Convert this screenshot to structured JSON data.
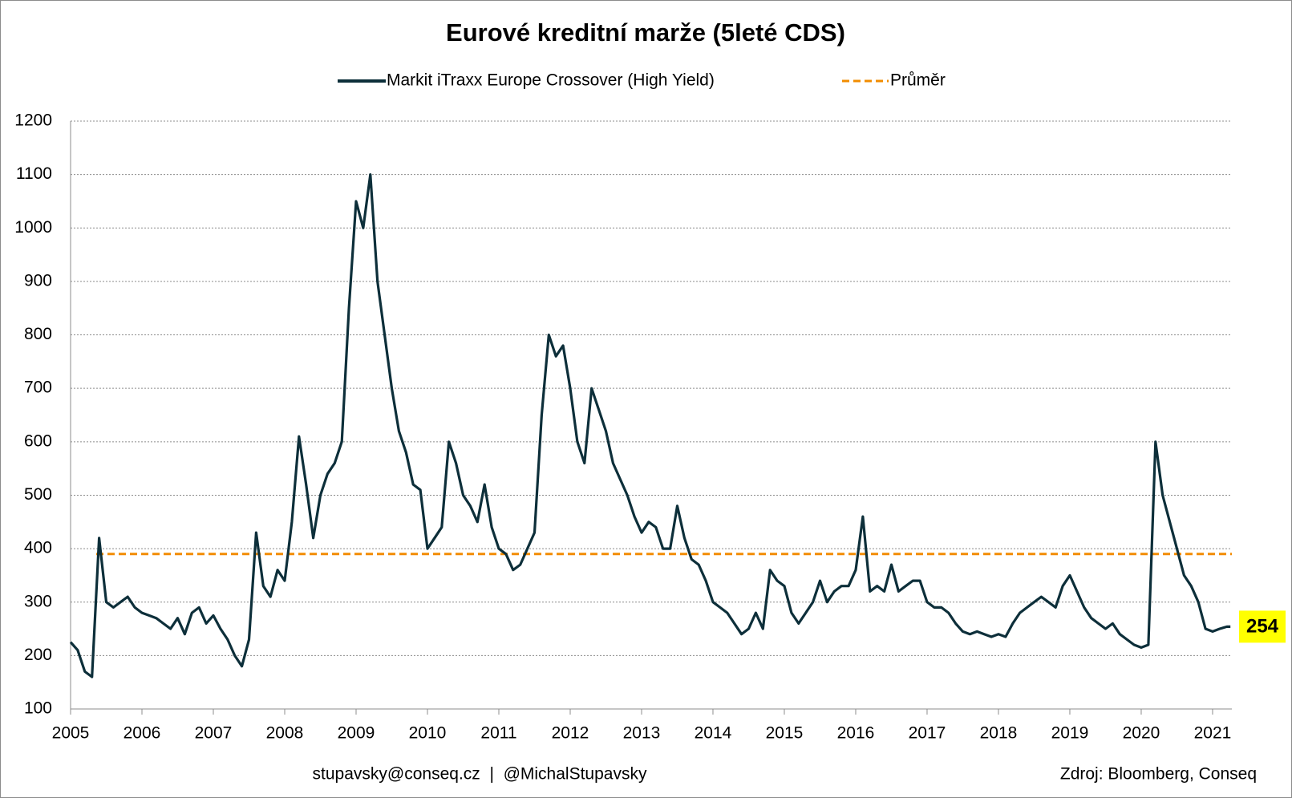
{
  "chart_data": {
    "type": "line",
    "title": "Eurové kreditní marže (5leté CDS)",
    "x": [
      2005.0,
      2005.1,
      2005.2,
      2005.3,
      2005.4,
      2005.5,
      2005.6,
      2005.7,
      2005.8,
      2005.9,
      2006.0,
      2006.1,
      2006.2,
      2006.3,
      2006.4,
      2006.5,
      2006.6,
      2006.7,
      2006.8,
      2006.9,
      2007.0,
      2007.1,
      2007.2,
      2007.3,
      2007.4,
      2007.5,
      2007.6,
      2007.7,
      2007.8,
      2007.9,
      2008.0,
      2008.1,
      2008.2,
      2008.3,
      2008.4,
      2008.5,
      2008.6,
      2008.7,
      2008.8,
      2008.9,
      2009.0,
      2009.1,
      2009.2,
      2009.3,
      2009.4,
      2009.5,
      2009.6,
      2009.7,
      2009.8,
      2009.9,
      2010.0,
      2010.1,
      2010.2,
      2010.3,
      2010.4,
      2010.5,
      2010.6,
      2010.7,
      2010.8,
      2010.9,
      2011.0,
      2011.1,
      2011.2,
      2011.3,
      2011.4,
      2011.5,
      2011.6,
      2011.7,
      2011.8,
      2011.9,
      2012.0,
      2012.1,
      2012.2,
      2012.3,
      2012.4,
      2012.5,
      2012.6,
      2012.7,
      2012.8,
      2012.9,
      2013.0,
      2013.1,
      2013.2,
      2013.3,
      2013.4,
      2013.5,
      2013.6,
      2013.7,
      2013.8,
      2013.9,
      2014.0,
      2014.1,
      2014.2,
      2014.3,
      2014.4,
      2014.5,
      2014.6,
      2014.7,
      2014.8,
      2014.9,
      2015.0,
      2015.1,
      2015.2,
      2015.3,
      2015.4,
      2015.5,
      2015.6,
      2015.7,
      2015.8,
      2015.9,
      2016.0,
      2016.1,
      2016.2,
      2016.3,
      2016.4,
      2016.5,
      2016.6,
      2016.7,
      2016.8,
      2016.9,
      2017.0,
      2017.1,
      2017.2,
      2017.3,
      2017.4,
      2017.5,
      2017.6,
      2017.7,
      2017.8,
      2017.9,
      2018.0,
      2018.1,
      2018.2,
      2018.3,
      2018.4,
      2018.5,
      2018.6,
      2018.7,
      2018.8,
      2018.9,
      2019.0,
      2019.1,
      2019.2,
      2019.3,
      2019.4,
      2019.5,
      2019.6,
      2019.7,
      2019.8,
      2019.9,
      2020.0,
      2020.1,
      2020.2,
      2020.3,
      2020.4,
      2020.5,
      2020.6,
      2020.7,
      2020.8,
      2020.9,
      2021.0,
      2021.1,
      2021.2,
      2021.25
    ],
    "series": [
      {
        "name": "Markit iTraxx Europe Crossover (High Yield)",
        "color": "#0d2f3a",
        "values": [
          225,
          210,
          170,
          160,
          420,
          300,
          290,
          300,
          310,
          290,
          280,
          275,
          270,
          260,
          250,
          270,
          240,
          280,
          290,
          260,
          275,
          250,
          230,
          200,
          180,
          230,
          430,
          330,
          310,
          360,
          340,
          450,
          610,
          520,
          420,
          500,
          540,
          560,
          600,
          850,
          1050,
          1000,
          1100,
          900,
          800,
          700,
          620,
          580,
          520,
          510,
          400,
          420,
          440,
          600,
          560,
          500,
          480,
          450,
          520,
          440,
          400,
          390,
          360,
          370,
          400,
          430,
          650,
          800,
          760,
          780,
          700,
          600,
          560,
          700,
          660,
          620,
          560,
          530,
          500,
          460,
          430,
          450,
          440,
          400,
          400,
          480,
          420,
          380,
          370,
          340,
          300,
          290,
          280,
          260,
          240,
          250,
          280,
          250,
          360,
          340,
          330,
          280,
          260,
          280,
          300,
          340,
          300,
          320,
          330,
          330,
          360,
          460,
          320,
          330,
          320,
          370,
          320,
          330,
          340,
          340,
          300,
          290,
          290,
          280,
          260,
          245,
          240,
          245,
          240,
          235,
          240,
          235,
          260,
          280,
          290,
          300,
          310,
          300,
          290,
          330,
          350,
          320,
          290,
          270,
          260,
          250,
          260,
          240,
          230,
          220,
          215,
          220,
          600,
          500,
          450,
          400,
          350,
          330,
          300,
          250,
          245,
          250,
          254,
          254
        ]
      },
      {
        "name": "Průměr",
        "color": "#f28c00",
        "style": "dashed",
        "value": 390
      }
    ],
    "end_label": 254,
    "xlim": [
      2005,
      2021.27
    ],
    "xticks": [
      2005,
      2006,
      2007,
      2008,
      2009,
      2010,
      2011,
      2012,
      2013,
      2014,
      2015,
      2016,
      2017,
      2018,
      2019,
      2020,
      2021
    ],
    "ylim": [
      100,
      1200
    ],
    "yticks": [
      100,
      200,
      300,
      400,
      500,
      600,
      700,
      800,
      900,
      1000,
      1100,
      1200
    ],
    "grid": true,
    "footer": "stupavsky@conseq.cz  |  @MichalStupavsky",
    "source": "Zdroj: Bloomberg, Conseq"
  }
}
